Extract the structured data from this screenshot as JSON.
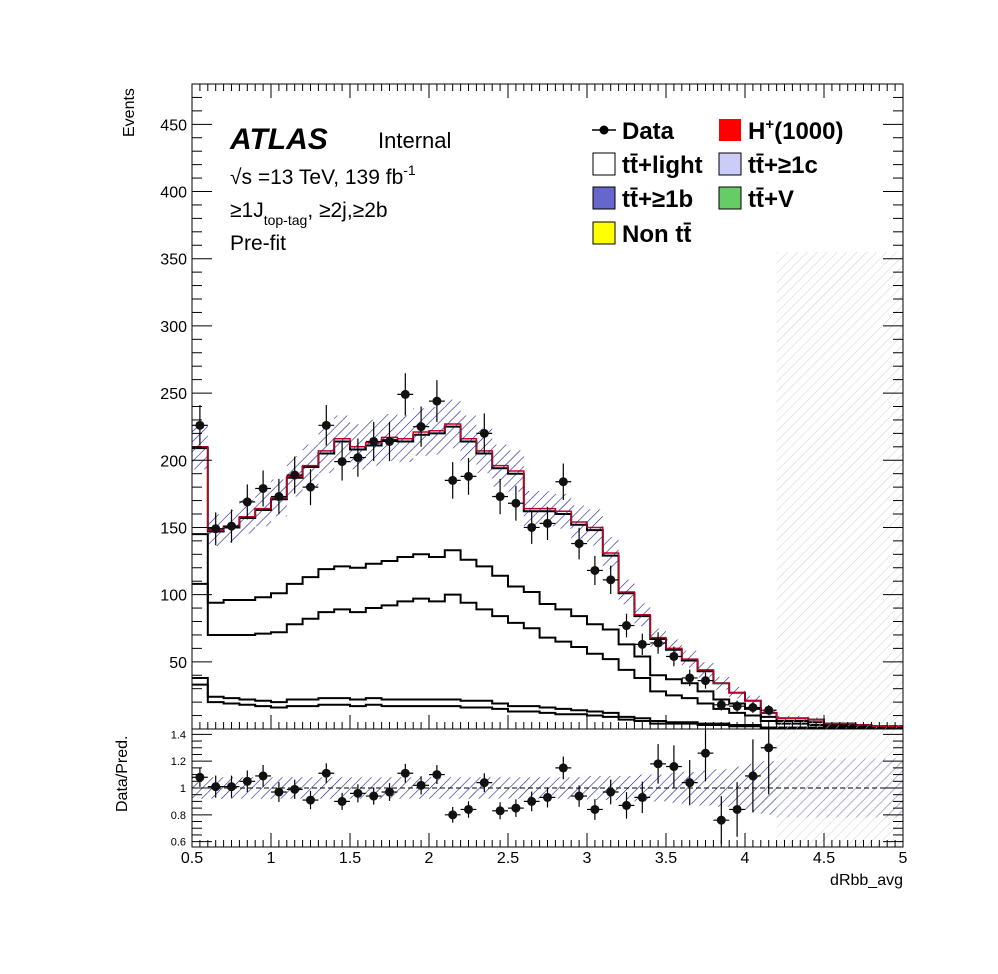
{
  "header": {
    "experiment": "ATLAS",
    "status": "Internal",
    "energy": "√s =13 TeV, 139 fb",
    "lumi_sup": "-1",
    "selection_pre": "≥1J",
    "selection_sub": "top-tag",
    "selection_post": ", ≥2j,≥2b",
    "fit": "Pre-fit"
  },
  "legend": {
    "data": "Data",
    "signal": "H",
    "signal_sup": "+",
    "signal_mass": "(1000)",
    "ttlight": "tt̄+light",
    "tt1c": "tt̄+≥1c",
    "tt1b": "tt̄+≥1b",
    "ttV": "tt̄+V",
    "nontt": "Non tt̄"
  },
  "axes": {
    "ylabel": "Events",
    "ratio_ylabel": "Data/Pred.",
    "xlabel": "dRbb_avg",
    "x_ticks": [
      "0.5",
      "1",
      "1.5",
      "2",
      "2.5",
      "3",
      "3.5",
      "4",
      "4.5",
      "5"
    ],
    "y_ticks": [
      "50",
      "100",
      "150",
      "200",
      "250",
      "300",
      "350",
      "400",
      "450"
    ],
    "ratio_ticks": [
      "0.6",
      "0.8",
      "1",
      "1.2",
      "1.4"
    ]
  },
  "colors": {
    "signal": "#ff0000",
    "ttlight": "#ffffff",
    "tt1c": "#ccccfa",
    "tt1b": "#6666cc",
    "ttV": "#66cc66",
    "nontt": "#ffff00",
    "data": "#000000",
    "uncertainty": "#1a1aa0"
  },
  "chart_data": {
    "type": "bar",
    "subtype": "stacked-histogram-with-ratio",
    "x_range": [
      0.5,
      5.0
    ],
    "ylim": [
      0,
      480
    ],
    "ratio_ylim": [
      0.56,
      1.44
    ],
    "bin_width": 0.1,
    "bin_lows": [
      0.5,
      0.6,
      0.7,
      0.8,
      0.9,
      1.0,
      1.1,
      1.2,
      1.3,
      1.4,
      1.5,
      1.6,
      1.7,
      1.8,
      1.9,
      2.0,
      2.1,
      2.2,
      2.3,
      2.4,
      2.5,
      2.6,
      2.7,
      2.8,
      2.9,
      3.0,
      3.1,
      3.2,
      3.3,
      3.4,
      3.5,
      3.6,
      3.7,
      3.8,
      3.9,
      4.0,
      4.1,
      4.2,
      4.3,
      4.4,
      4.5,
      4.6,
      4.7,
      4.8,
      4.9
    ],
    "series": [
      {
        "name": "Non tt̄",
        "values": [
          33,
          20,
          19,
          18,
          17,
          16,
          17,
          17,
          18,
          18,
          17,
          18,
          17,
          17,
          17,
          17,
          17,
          16,
          16,
          15,
          13,
          13,
          12,
          11,
          11,
          10,
          9,
          7,
          6,
          4,
          4,
          4,
          3,
          3,
          2,
          2,
          1,
          1,
          1,
          1,
          1,
          1,
          0,
          0,
          0
        ]
      },
      {
        "name": "tt̄+V",
        "values": [
          5,
          4,
          4,
          4,
          4,
          4,
          5,
          5,
          5,
          5,
          5,
          5,
          5,
          5,
          5,
          5,
          5,
          5,
          5,
          4,
          4,
          4,
          4,
          4,
          3,
          3,
          3,
          2,
          2,
          2,
          1,
          1,
          1,
          1,
          1,
          1,
          0,
          0,
          0,
          0,
          0,
          0,
          0,
          0,
          0
        ]
      },
      {
        "name": "tt̄+≥1b",
        "values": [
          70,
          46,
          47,
          48,
          50,
          52,
          56,
          60,
          64,
          66,
          65,
          67,
          70,
          73,
          75,
          73,
          78,
          73,
          68,
          65,
          62,
          58,
          52,
          50,
          47,
          43,
          40,
          35,
          30,
          22,
          20,
          18,
          15,
          11,
          9,
          7,
          5,
          3,
          3,
          2,
          1,
          1,
          1,
          1,
          1
        ]
      },
      {
        "name": "tt̄+≥1c",
        "values": [
          37,
          24,
          26,
          26,
          27,
          29,
          30,
          31,
          32,
          32,
          33,
          33,
          33,
          33,
          33,
          33,
          33,
          32,
          32,
          30,
          27,
          27,
          25,
          24,
          23,
          22,
          22,
          19,
          16,
          12,
          12,
          11,
          9,
          7,
          7,
          5,
          3,
          2,
          2,
          2,
          1,
          1,
          1,
          1,
          1
        ]
      },
      {
        "name": "tt̄+light",
        "values": [
          64,
          53,
          54,
          61,
          65,
          70,
          79,
          82,
          86,
          93,
          88,
          88,
          90,
          86,
          89,
          92,
          92,
          88,
          84,
          80,
          84,
          60,
          69,
          71,
          68,
          70,
          55,
          38,
          30,
          27,
          22,
          17,
          15,
          12,
          8,
          6,
          3,
          2,
          2,
          2,
          1,
          1,
          1,
          0,
          0
        ]
      },
      {
        "name": "H+(1000)",
        "values": [
          1,
          1,
          1,
          1,
          1,
          1,
          1,
          1,
          2,
          2,
          2,
          2,
          2,
          2,
          2,
          2,
          2,
          2,
          2,
          2,
          2,
          2,
          2,
          2,
          2,
          2,
          2,
          1,
          1,
          1,
          1,
          1,
          1,
          0,
          0,
          0,
          0,
          0,
          0,
          0,
          0,
          0,
          0,
          0,
          0
        ]
      }
    ],
    "data_points": {
      "x": [
        0.55,
        0.65,
        0.75,
        0.85,
        0.95,
        1.05,
        1.15,
        1.25,
        1.35,
        1.45,
        1.55,
        1.65,
        1.75,
        1.85,
        1.95,
        2.05,
        2.15,
        2.25,
        2.35,
        2.45,
        2.55,
        2.65,
        2.75,
        2.85,
        2.95,
        3.05,
        3.15,
        3.25,
        3.35,
        3.45,
        3.55,
        3.65,
        3.75,
        3.85,
        3.95,
        4.05,
        4.15
      ],
      "y": [
        226,
        149,
        151,
        169,
        179,
        173,
        189,
        180,
        226,
        199,
        202,
        214,
        214,
        249,
        225,
        244,
        185,
        188,
        220,
        173,
        168,
        150,
        153,
        184,
        138,
        118,
        111,
        77,
        63,
        64,
        54,
        38,
        36,
        18,
        17,
        16,
        14
      ]
    },
    "uncertainty_band": {
      "relative": [
        0.08,
        0.08,
        0.08,
        0.08,
        0.08,
        0.08,
        0.08,
        0.08,
        0.08,
        0.08,
        0.08,
        0.08,
        0.08,
        0.08,
        0.08,
        0.08,
        0.08,
        0.08,
        0.08,
        0.08,
        0.08,
        0.08,
        0.08,
        0.08,
        0.08,
        0.09,
        0.09,
        0.09,
        0.1,
        0.1,
        0.11,
        0.12,
        0.13,
        0.14,
        0.16,
        0.18,
        0.2,
        0.22,
        0.22,
        0.22,
        0.22,
        0.22,
        0.22,
        0.22,
        0.22
      ]
    },
    "ratio": {
      "x": [
        0.55,
        0.65,
        0.75,
        0.85,
        0.95,
        1.05,
        1.15,
        1.25,
        1.35,
        1.45,
        1.55,
        1.65,
        1.75,
        1.85,
        1.95,
        2.05,
        2.15,
        2.25,
        2.35,
        2.45,
        2.55,
        2.65,
        2.75,
        2.85,
        2.95,
        3.05,
        3.15,
        3.25,
        3.35,
        3.45,
        3.55,
        3.65,
        3.75,
        3.85,
        3.95,
        4.05,
        4.15
      ],
      "y": [
        1.08,
        1.01,
        1.01,
        1.05,
        1.09,
        0.97,
        0.99,
        0.91,
        1.11,
        0.9,
        0.96,
        0.94,
        0.97,
        1.11,
        1.02,
        1.1,
        0.8,
        0.84,
        1.04,
        0.83,
        0.85,
        0.9,
        0.93,
        1.15,
        0.94,
        0.84,
        0.97,
        0.87,
        0.93,
        1.18,
        1.16,
        1.04,
        1.26,
        0.76,
        0.84,
        1.09,
        1.3
      ]
    },
    "hatched_region_from": 4.2
  }
}
